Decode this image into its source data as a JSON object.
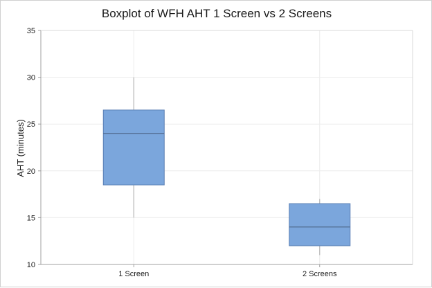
{
  "chart_data": {
    "type": "boxplot",
    "title": "Boxplot of WFH AHT 1 Screen vs 2 Screens",
    "xlabel": "",
    "ylabel": "AHT (minutes)",
    "ylim": [
      10,
      35
    ],
    "yticks": [
      10,
      15,
      20,
      25,
      30,
      35
    ],
    "grid": true,
    "categories": [
      "1 Screen",
      "2 Screens"
    ],
    "boxes": [
      {
        "category": "1 Screen",
        "min": 15,
        "q1": 18.5,
        "median": 24,
        "q3": 26.5,
        "max": 30
      },
      {
        "category": "2 Screens",
        "min": 11,
        "q1": 12,
        "median": 14,
        "q3": 16.5,
        "max": 17
      }
    ],
    "colors": {
      "box_fill": "#7ba6dc",
      "box_stroke": "#5a7fb4",
      "whisker": "#b8b8b8",
      "grid": "#ececec"
    }
  }
}
